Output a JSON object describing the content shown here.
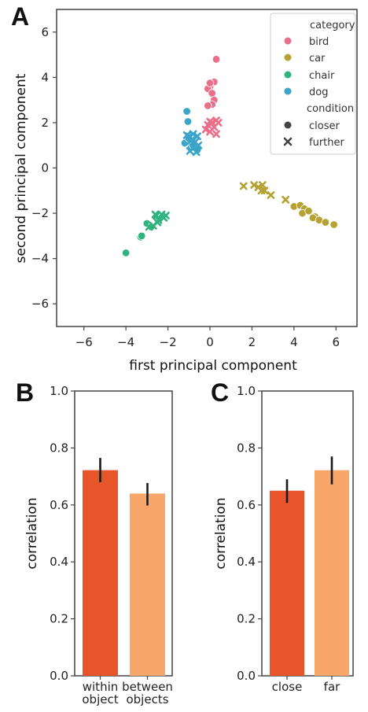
{
  "chart_data": [
    {
      "panel": "A",
      "type": "scatter",
      "xlabel": "first principal component",
      "ylabel": "second principal component",
      "xlim": [
        -7.3,
        7.0
      ],
      "ylim": [
        -7.0,
        7.0
      ],
      "xticks": [
        "−6",
        "−4",
        "−2",
        "0",
        "2",
        "4",
        "6"
      ],
      "xtick_values": [
        -6,
        -4,
        -2,
        0,
        2,
        4,
        6
      ],
      "yticks": [
        "−6",
        "−4",
        "−2",
        "0",
        "2",
        "4",
        "6"
      ],
      "ytick_values": [
        -6,
        -4,
        -2,
        0,
        2,
        4,
        6
      ],
      "grid": false,
      "legend_position": "top-right",
      "legend": {
        "category_title": "category",
        "categories": [
          {
            "name": "bird",
            "color": "#e8708a"
          },
          {
            "name": "car",
            "color": "#b5a233"
          },
          {
            "name": "chair",
            "color": "#2fb37f"
          },
          {
            "name": "dog",
            "color": "#3aa5c8"
          }
        ],
        "condition_title": "condition",
        "conditions": [
          {
            "name": "closer",
            "marker": "circle"
          },
          {
            "name": "further",
            "marker": "x"
          }
        ]
      },
      "series": [
        {
          "category": "bird",
          "condition": "closer",
          "points": [
            [
              0.3,
              4.8
            ],
            [
              0.2,
              3.8
            ],
            [
              0.0,
              3.6
            ],
            [
              -0.1,
              3.5
            ],
            [
              0.1,
              3.3
            ],
            [
              0.2,
              3.0
            ],
            [
              0.1,
              2.8
            ],
            [
              -0.1,
              2.75
            ],
            [
              0.2,
              3.8
            ],
            [
              0.0,
              3.75
            ]
          ]
        },
        {
          "category": "bird",
          "condition": "further",
          "points": [
            [
              0.0,
              2.05
            ],
            [
              0.3,
              2.1
            ],
            [
              0.4,
              2.0
            ],
            [
              -0.1,
              1.9
            ],
            [
              0.2,
              1.8
            ],
            [
              -0.2,
              1.7
            ],
            [
              0.0,
              1.6
            ],
            [
              0.3,
              1.5
            ],
            [
              0.1,
              2.0
            ]
          ]
        },
        {
          "category": "car",
          "condition": "closer",
          "points": [
            [
              4.0,
              -1.7
            ],
            [
              4.3,
              -1.65
            ],
            [
              4.5,
              -1.8
            ],
            [
              4.4,
              -2.0
            ],
            [
              4.7,
              -1.9
            ],
            [
              5.0,
              -2.15
            ],
            [
              4.9,
              -2.2
            ],
            [
              5.2,
              -2.3
            ],
            [
              5.5,
              -2.4
            ],
            [
              5.9,
              -2.5
            ]
          ]
        },
        {
          "category": "car",
          "condition": "further",
          "points": [
            [
              1.6,
              -0.8
            ],
            [
              2.1,
              -0.75
            ],
            [
              2.3,
              -0.85
            ],
            [
              2.5,
              -0.75
            ],
            [
              2.6,
              -1.0
            ],
            [
              2.45,
              -1.0
            ],
            [
              2.9,
              -1.2
            ],
            [
              3.6,
              -1.4
            ]
          ]
        },
        {
          "category": "chair",
          "condition": "closer",
          "points": [
            [
              -4.0,
              -3.75
            ],
            [
              -3.3,
              -3.05
            ],
            [
              -3.25,
              -3.0
            ],
            [
              -3.0,
              -2.45
            ],
            [
              -2.8,
              -2.6
            ]
          ]
        },
        {
          "category": "chair",
          "condition": "further",
          "points": [
            [
              -2.9,
              -2.6
            ],
            [
              -2.7,
              -2.55
            ],
            [
              -2.55,
              -2.1
            ],
            [
              -2.45,
              -2.3
            ],
            [
              -2.3,
              -2.05
            ],
            [
              -2.2,
              -2.2
            ],
            [
              -2.1,
              -2.1
            ],
            [
              -2.5,
              -2.4
            ],
            [
              -2.6,
              -2.05
            ]
          ]
        },
        {
          "category": "dog",
          "condition": "closer",
          "points": [
            [
              -1.1,
              2.5
            ],
            [
              -1.05,
              2.05
            ],
            [
              -1.2,
              1.1
            ],
            [
              -0.9,
              0.9
            ],
            [
              -1.0,
              1.3
            ],
            [
              -0.8,
              1.0
            ],
            [
              -0.6,
              0.8
            ]
          ]
        },
        {
          "category": "dog",
          "condition": "further",
          "points": [
            [
              -0.8,
              1.5
            ],
            [
              -0.6,
              1.4
            ],
            [
              -1.0,
              1.4
            ],
            [
              -0.9,
              1.2
            ],
            [
              -0.7,
              1.15
            ],
            [
              -0.55,
              1.0
            ],
            [
              -0.8,
              0.9
            ],
            [
              -0.95,
              0.75
            ],
            [
              -0.65,
              0.7
            ],
            [
              -0.85,
              1.25
            ],
            [
              -1.1,
              1.45
            ]
          ]
        }
      ]
    },
    {
      "panel": "B",
      "type": "bar",
      "ylabel": "correlation",
      "ylim": [
        0.0,
        1.0
      ],
      "yticks": [
        "0.0",
        "0.2",
        "0.4",
        "0.6",
        "0.8",
        "1.0"
      ],
      "ytick_values": [
        0.0,
        0.2,
        0.4,
        0.6,
        0.8,
        1.0
      ],
      "categories": [
        [
          "within",
          "object"
        ],
        [
          "between",
          "objects"
        ]
      ],
      "values": [
        0.722,
        0.64
      ],
      "errors": [
        [
          0.68,
          0.765
        ],
        [
          0.598,
          0.677
        ]
      ],
      "colors": [
        "#e8552a",
        "#f9a66a"
      ]
    },
    {
      "panel": "C",
      "type": "bar",
      "ylabel": "correlation",
      "ylim": [
        0.0,
        1.0
      ],
      "yticks": [
        "0.0",
        "0.2",
        "0.4",
        "0.6",
        "0.8",
        "1.0"
      ],
      "ytick_values": [
        0.0,
        0.2,
        0.4,
        0.6,
        0.8,
        1.0
      ],
      "categories": [
        [
          "close"
        ],
        [
          "far"
        ]
      ],
      "values": [
        0.65,
        0.722
      ],
      "errors": [
        [
          0.607,
          0.69
        ],
        [
          0.672,
          0.77
        ]
      ],
      "colors": [
        "#e8552a",
        "#f9a66a"
      ]
    }
  ]
}
